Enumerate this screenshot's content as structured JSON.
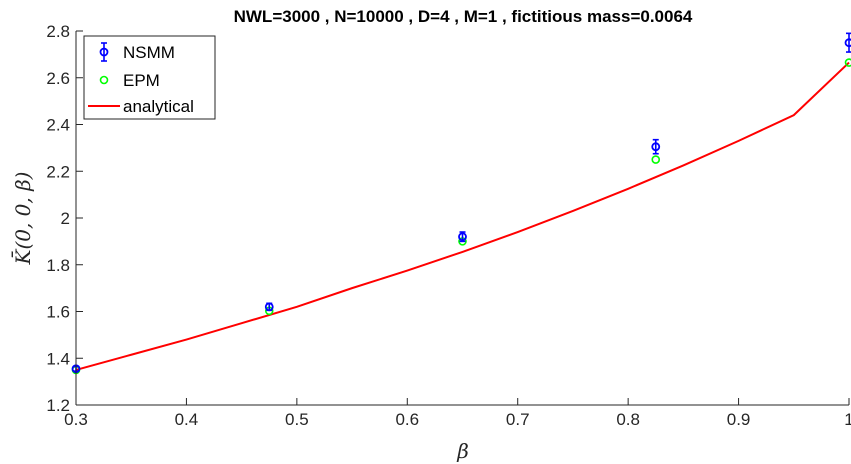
{
  "chart_data": {
    "type": "line",
    "title": "NWL=3000 ,    N=10000 ,    D=4 ,    M=1 ,    fictitious mass=0.0064",
    "xlabel": "β",
    "ylabel": "K̄(0, 0, β)",
    "xlim": [
      0.3,
      1.0
    ],
    "ylim": [
      1.2,
      2.8
    ],
    "xticks": [
      "0.3",
      "0.4",
      "0.5",
      "0.6",
      "0.7",
      "0.8",
      "0.9",
      "1"
    ],
    "yticks": [
      "1.2",
      "1.4",
      "1.6",
      "1.8",
      "2",
      "2.2",
      "2.4",
      "2.6",
      "2.8"
    ],
    "grid": false,
    "legend_position": "top-left",
    "series": [
      {
        "name": "NSMM",
        "kind": "errorbar",
        "color": "#0000ff",
        "x": [
          0.3,
          0.475,
          0.65,
          0.825,
          1.0
        ],
        "y": [
          1.355,
          1.62,
          1.92,
          2.305,
          2.75
        ],
        "err": [
          0.01,
          0.015,
          0.02,
          0.03,
          0.04
        ]
      },
      {
        "name": "EPM",
        "kind": "scatter",
        "color": "#00ff00",
        "x": [
          0.3,
          0.475,
          0.65,
          0.825,
          1.0
        ],
        "y": [
          1.35,
          1.603,
          1.9,
          2.25,
          2.665
        ]
      },
      {
        "name": "analytical",
        "kind": "line",
        "color": "#ff0000",
        "x": [
          0.3,
          0.35,
          0.4,
          0.45,
          0.5,
          0.55,
          0.6,
          0.65,
          0.7,
          0.75,
          0.8,
          0.85,
          0.9,
          0.95,
          1.0
        ],
        "y": [
          1.35,
          1.415,
          1.48,
          1.55,
          1.62,
          1.7,
          1.775,
          1.855,
          1.94,
          2.03,
          2.125,
          2.225,
          2.33,
          2.44,
          2.665
        ]
      }
    ]
  }
}
